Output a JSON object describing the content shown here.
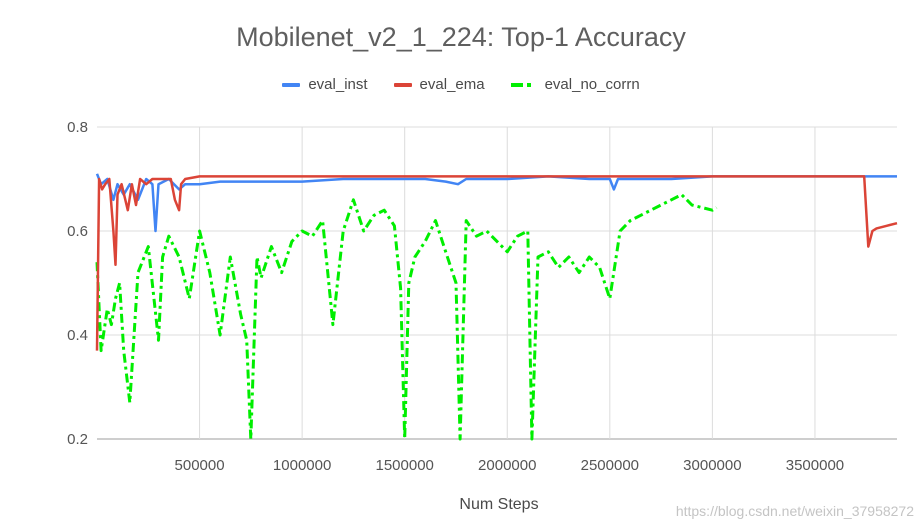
{
  "chart_data": {
    "type": "line",
    "title": "Mobilenet_v2_1_224: Top-1 Accuracy",
    "xlabel": "Num Steps",
    "ylabel": "",
    "xlim": [
      0,
      3900000
    ],
    "ylim": [
      0.2,
      0.8
    ],
    "x_ticks": [
      "500000",
      "1000000",
      "1500000",
      "2000000",
      "2500000",
      "3000000",
      "3500000"
    ],
    "y_ticks": [
      "0.2",
      "0.4",
      "0.6",
      "0.8"
    ],
    "grid": true,
    "legend_position": "top",
    "series": [
      {
        "name": "eval_inst",
        "color": "#4285f4",
        "style": "solid",
        "x": [
          0,
          20000,
          50000,
          80000,
          100000,
          130000,
          160000,
          200000,
          240000,
          270000,
          285000,
          300000,
          350000,
          400000,
          430000,
          500000,
          600000,
          800000,
          1000000,
          1200000,
          1400000,
          1600000,
          1700000,
          1760000,
          1800000,
          2000000,
          2200000,
          2400000,
          2500000,
          2520000,
          2540000,
          2600000,
          2800000,
          3000000,
          3200000,
          3500000,
          3700000,
          3800000,
          3900000
        ],
        "values": [
          0.71,
          0.69,
          0.7,
          0.66,
          0.69,
          0.67,
          0.69,
          0.66,
          0.7,
          0.69,
          0.6,
          0.69,
          0.7,
          0.68,
          0.69,
          0.69,
          0.695,
          0.695,
          0.695,
          0.7,
          0.7,
          0.7,
          0.695,
          0.69,
          0.7,
          0.7,
          0.705,
          0.7,
          0.7,
          0.68,
          0.7,
          0.7,
          0.7,
          0.705,
          0.705,
          0.705,
          0.705,
          0.705,
          0.705
        ]
      },
      {
        "name": "eval_ema",
        "color": "#db4437",
        "style": "solid",
        "x": [
          0,
          10000,
          25000,
          40000,
          60000,
          80000,
          90000,
          100000,
          120000,
          150000,
          170000,
          190000,
          210000,
          240000,
          270000,
          300000,
          330000,
          360000,
          380000,
          400000,
          410000,
          430000,
          500000,
          800000,
          1000000,
          1500000,
          2000000,
          2300000,
          2500000,
          3000000,
          3500000,
          3740000,
          3760000,
          3780000,
          3800000,
          3850000,
          3900000
        ],
        "values": [
          0.37,
          0.7,
          0.68,
          0.69,
          0.7,
          0.6,
          0.535,
          0.67,
          0.69,
          0.64,
          0.69,
          0.65,
          0.7,
          0.69,
          0.7,
          0.7,
          0.7,
          0.7,
          0.66,
          0.64,
          0.69,
          0.7,
          0.705,
          0.705,
          0.705,
          0.705,
          0.705,
          0.705,
          0.705,
          0.705,
          0.705,
          0.705,
          0.57,
          0.6,
          0.605,
          0.61,
          0.615
        ]
      },
      {
        "name": "eval_no_corrn",
        "color": "#00ee00",
        "style": "dashed",
        "x": [
          0,
          20000,
          50000,
          70000,
          90000,
          110000,
          130000,
          160000,
          200000,
          250000,
          300000,
          320000,
          350000,
          400000,
          450000,
          500000,
          550000,
          600000,
          650000,
          700000,
          730000,
          750000,
          780000,
          800000,
          850000,
          900000,
          950000,
          1000000,
          1050000,
          1100000,
          1150000,
          1200000,
          1250000,
          1300000,
          1350000,
          1400000,
          1450000,
          1480000,
          1500000,
          1520000,
          1550000,
          1600000,
          1650000,
          1700000,
          1750000,
          1770000,
          1800000,
          1850000,
          1900000,
          1950000,
          2000000,
          2050000,
          2100000,
          2120000,
          2150000,
          2200000,
          2250000,
          2300000,
          2350000,
          2400000,
          2450000,
          2500000,
          2550000,
          2600000,
          2700000,
          2800000,
          2850000,
          2900000,
          3000000,
          3020000
        ],
        "values": [
          0.54,
          0.37,
          0.45,
          0.42,
          0.47,
          0.5,
          0.37,
          0.27,
          0.52,
          0.57,
          0.39,
          0.55,
          0.59,
          0.55,
          0.47,
          0.6,
          0.52,
          0.4,
          0.55,
          0.44,
          0.39,
          0.2,
          0.55,
          0.51,
          0.57,
          0.52,
          0.58,
          0.6,
          0.59,
          0.62,
          0.42,
          0.6,
          0.66,
          0.6,
          0.63,
          0.64,
          0.61,
          0.49,
          0.2,
          0.5,
          0.55,
          0.58,
          0.62,
          0.56,
          0.5,
          0.2,
          0.62,
          0.59,
          0.6,
          0.58,
          0.56,
          0.59,
          0.6,
          0.2,
          0.55,
          0.56,
          0.53,
          0.55,
          0.52,
          0.55,
          0.53,
          0.47,
          0.6,
          0.62,
          0.64,
          0.66,
          0.67,
          0.65,
          0.64,
          0.645
        ]
      }
    ]
  },
  "watermark": "https://blog.csdn.net/weixin_37958272"
}
